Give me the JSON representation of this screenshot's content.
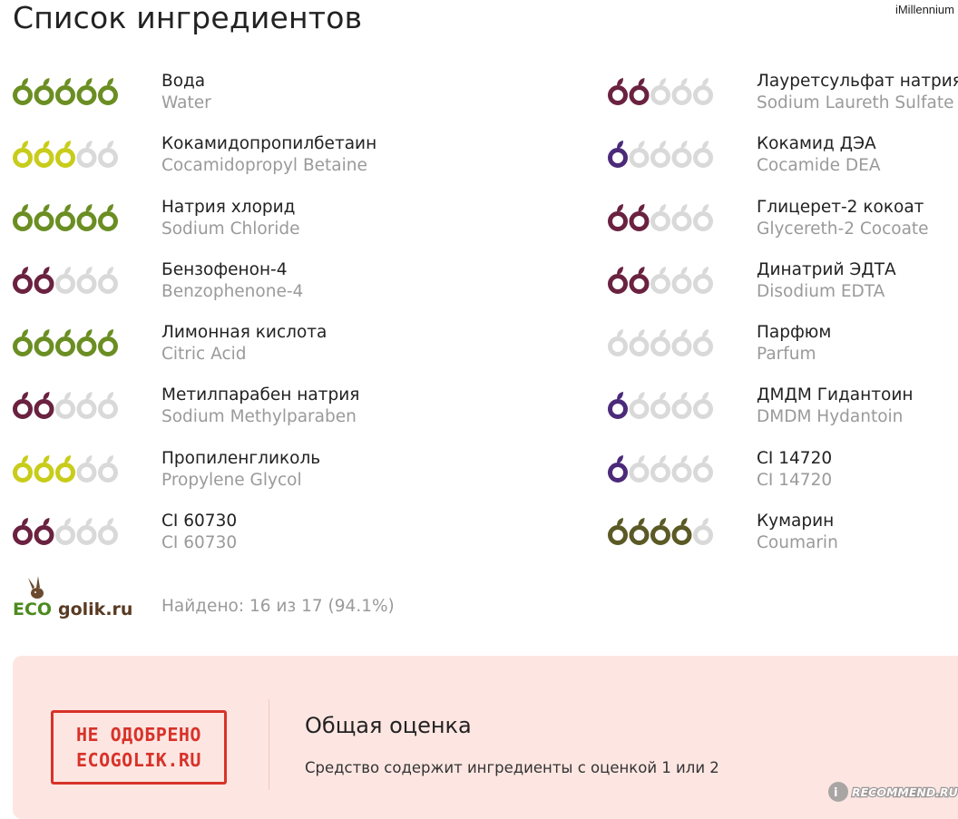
{
  "page": {
    "title": "Список ингредиентов",
    "watermark_top": "iMillennium",
    "found_text": "Найдено: 16 из 17 (94.1%)",
    "logo": {
      "eco": "ECO",
      "rest": "golik.ru"
    },
    "watermark_bottom": "RECOMMEND.RU"
  },
  "colors": {
    "green": "#6b8e23",
    "yellow": "#c8cc1a",
    "maroon": "#6a2240",
    "purple": "#4b2a7a",
    "olive": "#5b5a26",
    "empty": "#d9d9d9"
  },
  "ingredients_left": [
    {
      "ru": "Вода",
      "en": "Water",
      "rating": 5,
      "color": "#6b8e23"
    },
    {
      "ru": "Кокамидопропилбетаин",
      "en": "Cocamidopropyl Betaine",
      "rating": 3,
      "color": "#c8cc1a"
    },
    {
      "ru": "Натрия хлорид",
      "en": "Sodium Chloride",
      "rating": 5,
      "color": "#6b8e23"
    },
    {
      "ru": "Бензофенон-4",
      "en": "Benzophenone-4",
      "rating": 2,
      "color": "#6a2240"
    },
    {
      "ru": "Лимонная кислота",
      "en": "Citric Acid",
      "rating": 5,
      "color": "#6b8e23"
    },
    {
      "ru": "Метилпарабен натрия",
      "en": "Sodium Methylparaben",
      "rating": 2,
      "color": "#6a2240"
    },
    {
      "ru": "Пропиленгликоль",
      "en": "Propylene Glycol",
      "rating": 3,
      "color": "#c8cc1a"
    },
    {
      "ru": "CI 60730",
      "en": "CI 60730",
      "rating": 2,
      "color": "#6a2240"
    }
  ],
  "ingredients_right": [
    {
      "ru": "Лауретсульфат натрия",
      "en": "Sodium Laureth Sulfate",
      "rating": 2,
      "color": "#6a2240"
    },
    {
      "ru": "Кокамид ДЭА",
      "en": "Cocamide DEA",
      "rating": 1,
      "color": "#4b2a7a"
    },
    {
      "ru": "Глицерет-2 кокоат",
      "en": "Glycereth-2 Cocoate",
      "rating": 2,
      "color": "#6a2240"
    },
    {
      "ru": "Динатрий ЭДТА",
      "en": "Disodium EDTA",
      "rating": 2,
      "color": "#6a2240"
    },
    {
      "ru": "Парфюм",
      "en": "Parfum",
      "rating": 0,
      "color": "#d9d9d9"
    },
    {
      "ru": "ДМДМ Гидантоин",
      "en": "DMDM Hydantoin",
      "rating": 1,
      "color": "#4b2a7a"
    },
    {
      "ru": "CI 14720",
      "en": "CI 14720",
      "rating": 1,
      "color": "#4b2a7a"
    },
    {
      "ru": "Кумарин",
      "en": "Coumarin",
      "rating": 4,
      "color": "#5b5a26"
    }
  ],
  "verdict": {
    "stamp_line1": "НЕ ОДОБРЕНО",
    "stamp_line2": "ECOGOLIK.RU",
    "title": "Общая оценка",
    "text": "Средство содержит ингредиенты с оценкой 1 или 2"
  }
}
